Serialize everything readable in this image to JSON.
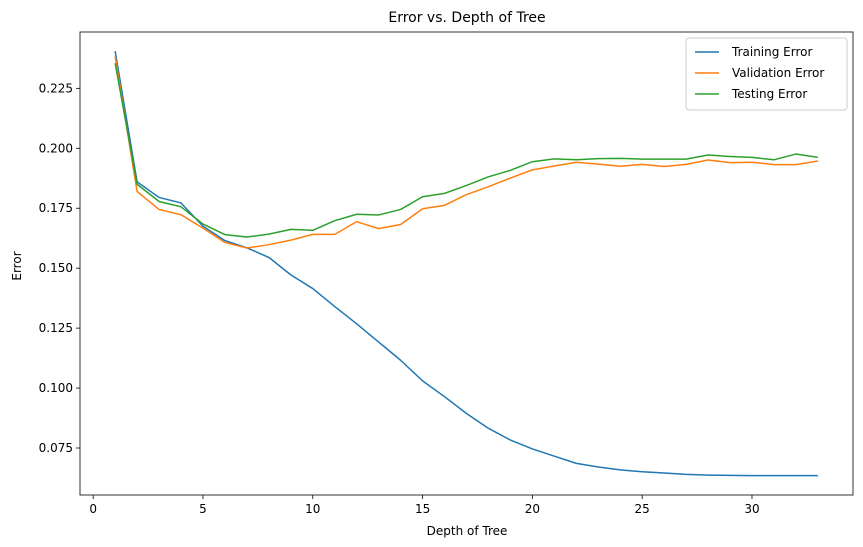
{
  "chart_data": {
    "type": "line",
    "title": "Error vs. Depth of Tree",
    "xlabel": "Depth of Tree",
    "ylabel": "Error",
    "xlim": [
      -0.6,
      34.6
    ],
    "ylim": [
      0.0554,
      0.2485
    ],
    "xticks": [
      0,
      5,
      10,
      15,
      20,
      25,
      30
    ],
    "yticks": [
      0.075,
      0.1,
      0.125,
      0.15,
      0.175,
      0.2,
      0.225
    ],
    "ytick_labels": [
      "0.075",
      "0.100",
      "0.125",
      "0.150",
      "0.175",
      "0.200",
      "0.225"
    ],
    "grid": false,
    "legend_position": "top-right",
    "x": [
      1,
      2,
      3,
      4,
      5,
      6,
      7,
      8,
      9,
      10,
      11,
      12,
      13,
      14,
      15,
      16,
      17,
      18,
      19,
      20,
      21,
      22,
      23,
      24,
      25,
      26,
      27,
      28,
      29,
      30,
      31,
      32,
      33
    ],
    "series": [
      {
        "name": "Training Error",
        "color": "#1f77b4",
        "values": [
          0.2405,
          0.186,
          0.1795,
          0.1772,
          0.1675,
          0.1615,
          0.1585,
          0.1545,
          0.1472,
          0.1415,
          0.134,
          0.1268,
          0.1192,
          0.1116,
          0.103,
          0.0964,
          0.0894,
          0.0832,
          0.0783,
          0.0746,
          0.0716,
          0.0686,
          0.0671,
          0.0659,
          0.0651,
          0.0646,
          0.064,
          0.0637,
          0.0636,
          0.0635,
          0.0635,
          0.0635,
          0.0635
        ]
      },
      {
        "name": "Validation Error",
        "color": "#ff7f0e",
        "values": [
          0.2385,
          0.182,
          0.1745,
          0.1723,
          0.1667,
          0.1607,
          0.1584,
          0.1598,
          0.1617,
          0.1641,
          0.1641,
          0.1694,
          0.1665,
          0.1682,
          0.1748,
          0.1762,
          0.1807,
          0.184,
          0.1876,
          0.191,
          0.1926,
          0.1942,
          0.1934,
          0.1925,
          0.1933,
          0.1924,
          0.1933,
          0.1951,
          0.194,
          0.1942,
          0.1932,
          0.1932,
          0.1947
        ]
      },
      {
        "name": "Testing Error",
        "color": "#2ca02c",
        "values": [
          0.2355,
          0.185,
          0.1778,
          0.1756,
          0.1684,
          0.164,
          0.163,
          0.1642,
          0.1662,
          0.1658,
          0.1698,
          0.1725,
          0.1722,
          0.1745,
          0.1798,
          0.1812,
          0.1845,
          0.1881,
          0.1908,
          0.1944,
          0.1956,
          0.1952,
          0.1957,
          0.1958,
          0.1955,
          0.1955,
          0.1955,
          0.1972,
          0.1966,
          0.1962,
          0.1952,
          0.1976,
          0.1962
        ]
      }
    ]
  }
}
